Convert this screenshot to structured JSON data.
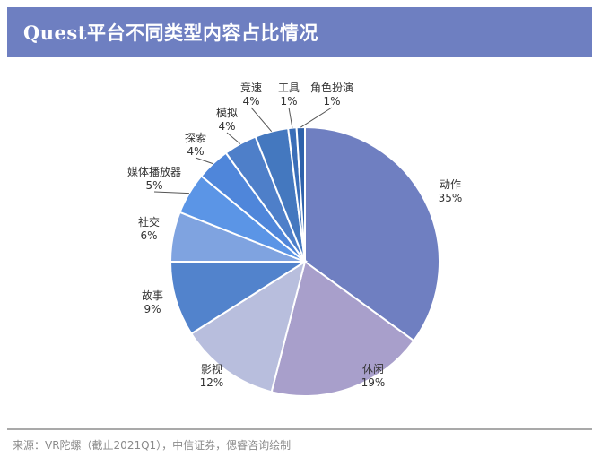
{
  "chart_data": {
    "type": "pie",
    "title": "Quest平台不同类型内容占比情况",
    "categories": [
      "动作",
      "休闲",
      "影视",
      "故事",
      "社交",
      "媒体播放器",
      "探索",
      "模拟",
      "竞速",
      "工具",
      "角色扮演"
    ],
    "values": [
      35,
      19,
      12,
      9,
      6,
      5,
      4,
      4,
      4,
      1,
      1
    ],
    "value_labels": [
      "35%",
      "19%",
      "12%",
      "9%",
      "6%",
      "5%",
      "4%",
      "4%",
      "4%",
      "1%",
      "1%"
    ],
    "colors": [
      "#6f7fc1",
      "#a89fcb",
      "#b8bedd",
      "#5283cc",
      "#7fa3e0",
      "#5b95e6",
      "#4f86da",
      "#4e7fc9",
      "#4478bf",
      "#3a6eb8",
      "#2f62ab"
    ],
    "start_angle": "12 o'clock, clockwise",
    "legend": "none (labels outside slices)"
  },
  "footer": {
    "source": "来源：VR陀螺（截止2021Q1），中信证券，偲睿咨询绘制"
  }
}
